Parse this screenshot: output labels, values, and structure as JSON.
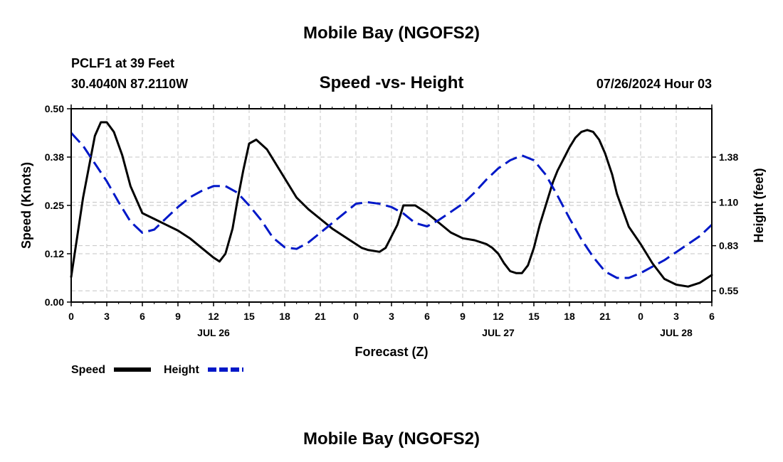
{
  "chart_data": {
    "type": "line",
    "title": "Mobile Bay (NGOFS2)",
    "subtitle": "Speed -vs- Height",
    "station_line1": "PCLF1 at 39 Feet",
    "station_line2": "30.4040N  87.2110W",
    "date_label": "07/26/2024 Hour 03",
    "bottom_title": "Mobile Bay (NGOFS2)",
    "xlabel": "Forecast (Z)",
    "ylabel_left": "Speed (Knots)",
    "ylabel_right": "Height (feet)",
    "x_range_hours": [
      0,
      54
    ],
    "x_tick_labels": [
      "0",
      "3",
      "6",
      "9",
      "12",
      "15",
      "18",
      "21",
      "0",
      "3",
      "6",
      "9",
      "12",
      "15",
      "18",
      "21",
      "0",
      "3",
      "6"
    ],
    "date_labels": [
      {
        "text": "JUL 26",
        "hour": 12
      },
      {
        "text": "JUL 27",
        "hour": 36
      },
      {
        "text": "JUL 28",
        "hour": 51
      }
    ],
    "ylim_left": [
      0,
      0.5
    ],
    "yticks_left": [
      {
        "value": 0,
        "label": "0.00"
      },
      {
        "value": 0.125,
        "label": "0.12"
      },
      {
        "value": 0.25,
        "label": "0.25"
      },
      {
        "value": 0.375,
        "label": "0.38"
      },
      {
        "value": 0.5,
        "label": "0.50"
      }
    ],
    "ylim_right": [
      0.48,
      1.68
    ],
    "yticks_right": [
      {
        "value": 0.55,
        "label": "0.55"
      },
      {
        "value": 0.83,
        "label": "0.83"
      },
      {
        "value": 1.1,
        "label": "1.10"
      },
      {
        "value": 1.38,
        "label": "1.38"
      }
    ],
    "series": [
      {
        "name": "Speed",
        "axis": "left",
        "color": "#000000",
        "dash": false,
        "x": [
          0,
          1,
          2,
          2.5,
          3,
          3.6,
          4.3,
          5,
          6,
          7,
          8,
          9,
          10,
          11,
          12,
          12.5,
          13,
          13.6,
          14,
          14.5,
          15,
          15.6,
          16.5,
          18,
          19,
          20,
          21,
          22,
          23,
          23.5,
          24,
          24.5,
          25,
          26,
          26.5,
          27,
          27.5,
          28,
          29,
          30,
          31,
          32,
          33,
          34,
          34.5,
          35,
          35.5,
          36,
          36.5,
          37,
          37.5,
          38,
          38.5,
          39,
          39.5,
          40,
          40.6,
          41,
          41.5,
          42,
          42.5,
          43,
          43.5,
          44,
          44.5,
          45,
          45.6,
          46,
          47,
          48,
          49,
          50,
          51,
          52,
          53,
          54
        ],
        "values": [
          0.065,
          0.27,
          0.43,
          0.465,
          0.465,
          0.44,
          0.38,
          0.3,
          0.23,
          0.215,
          0.2,
          0.185,
          0.165,
          0.14,
          0.115,
          0.105,
          0.125,
          0.19,
          0.26,
          0.34,
          0.41,
          0.42,
          0.395,
          0.32,
          0.27,
          0.24,
          0.215,
          0.19,
          0.17,
          0.16,
          0.15,
          0.14,
          0.135,
          0.13,
          0.14,
          0.17,
          0.2,
          0.25,
          0.25,
          0.23,
          0.205,
          0.18,
          0.165,
          0.16,
          0.155,
          0.15,
          0.14,
          0.125,
          0.1,
          0.08,
          0.075,
          0.075,
          0.095,
          0.14,
          0.2,
          0.25,
          0.31,
          0.34,
          0.37,
          0.4,
          0.425,
          0.44,
          0.445,
          0.44,
          0.42,
          0.385,
          0.33,
          0.28,
          0.195,
          0.15,
          0.1,
          0.06,
          0.045,
          0.04,
          0.05,
          0.07
        ]
      },
      {
        "name": "Height",
        "axis": "right",
        "color": "#0018c8",
        "dash": true,
        "x": [
          0,
          1,
          2,
          3,
          4,
          5,
          6,
          7,
          8,
          9,
          10,
          11,
          12,
          13,
          14,
          15,
          16,
          17,
          18,
          19,
          20,
          21,
          22,
          23,
          24,
          25,
          26,
          27,
          28,
          29,
          30,
          31,
          32,
          33,
          34,
          35,
          36,
          37,
          38,
          39,
          40,
          41,
          42,
          43,
          44,
          45,
          46,
          47,
          48,
          49,
          50,
          51,
          52,
          53,
          54
        ],
        "values": [
          1.53,
          1.45,
          1.34,
          1.23,
          1.1,
          0.98,
          0.91,
          0.93,
          1.0,
          1.07,
          1.13,
          1.17,
          1.2,
          1.2,
          1.16,
          1.08,
          0.99,
          0.88,
          0.82,
          0.81,
          0.85,
          0.91,
          0.97,
          1.03,
          1.09,
          1.1,
          1.09,
          1.07,
          1.03,
          0.97,
          0.95,
          0.99,
          1.04,
          1.09,
          1.16,
          1.24,
          1.31,
          1.36,
          1.39,
          1.36,
          1.27,
          1.14,
          1.0,
          0.87,
          0.76,
          0.67,
          0.63,
          0.63,
          0.66,
          0.7,
          0.74,
          0.79,
          0.84,
          0.89,
          0.96
        ]
      }
    ],
    "legend": [
      {
        "label": "Speed",
        "color": "#000000",
        "dash": false
      },
      {
        "label": "Height",
        "color": "#0018c8",
        "dash": true
      }
    ]
  }
}
